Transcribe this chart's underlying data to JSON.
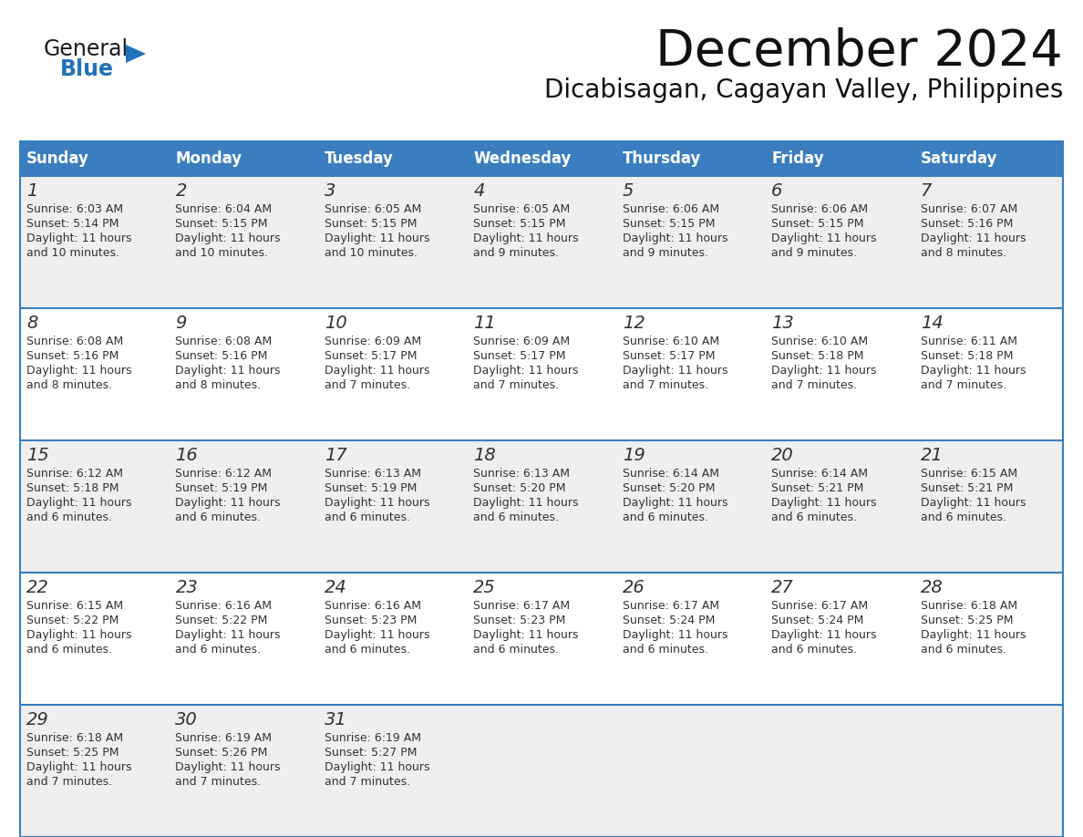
{
  "title": "December 2024",
  "subtitle": "Dicabisagan, Cagayan Valley, Philippines",
  "header_color": "#3a7ebf",
  "header_text_color": "#ffffff",
  "row_odd_bg": "#efefef",
  "row_even_bg": "#ffffff",
  "border_color": "#3a7ebf",
  "text_color": "#333333",
  "days_of_week": [
    "Sunday",
    "Monday",
    "Tuesday",
    "Wednesday",
    "Thursday",
    "Friday",
    "Saturday"
  ],
  "weeks": [
    [
      {
        "day": 1,
        "sunrise": "6:03 AM",
        "sunset": "5:14 PM",
        "daylight_l1": "Daylight: 11 hours",
        "daylight_l2": "and 10 minutes."
      },
      {
        "day": 2,
        "sunrise": "6:04 AM",
        "sunset": "5:15 PM",
        "daylight_l1": "Daylight: 11 hours",
        "daylight_l2": "and 10 minutes."
      },
      {
        "day": 3,
        "sunrise": "6:05 AM",
        "sunset": "5:15 PM",
        "daylight_l1": "Daylight: 11 hours",
        "daylight_l2": "and 10 minutes."
      },
      {
        "day": 4,
        "sunrise": "6:05 AM",
        "sunset": "5:15 PM",
        "daylight_l1": "Daylight: 11 hours",
        "daylight_l2": "and 9 minutes."
      },
      {
        "day": 5,
        "sunrise": "6:06 AM",
        "sunset": "5:15 PM",
        "daylight_l1": "Daylight: 11 hours",
        "daylight_l2": "and 9 minutes."
      },
      {
        "day": 6,
        "sunrise": "6:06 AM",
        "sunset": "5:15 PM",
        "daylight_l1": "Daylight: 11 hours",
        "daylight_l2": "and 9 minutes."
      },
      {
        "day": 7,
        "sunrise": "6:07 AM",
        "sunset": "5:16 PM",
        "daylight_l1": "Daylight: 11 hours",
        "daylight_l2": "and 8 minutes."
      }
    ],
    [
      {
        "day": 8,
        "sunrise": "6:08 AM",
        "sunset": "5:16 PM",
        "daylight_l1": "Daylight: 11 hours",
        "daylight_l2": "and 8 minutes."
      },
      {
        "day": 9,
        "sunrise": "6:08 AM",
        "sunset": "5:16 PM",
        "daylight_l1": "Daylight: 11 hours",
        "daylight_l2": "and 8 minutes."
      },
      {
        "day": 10,
        "sunrise": "6:09 AM",
        "sunset": "5:17 PM",
        "daylight_l1": "Daylight: 11 hours",
        "daylight_l2": "and 7 minutes."
      },
      {
        "day": 11,
        "sunrise": "6:09 AM",
        "sunset": "5:17 PM",
        "daylight_l1": "Daylight: 11 hours",
        "daylight_l2": "and 7 minutes."
      },
      {
        "day": 12,
        "sunrise": "6:10 AM",
        "sunset": "5:17 PM",
        "daylight_l1": "Daylight: 11 hours",
        "daylight_l2": "and 7 minutes."
      },
      {
        "day": 13,
        "sunrise": "6:10 AM",
        "sunset": "5:18 PM",
        "daylight_l1": "Daylight: 11 hours",
        "daylight_l2": "and 7 minutes."
      },
      {
        "day": 14,
        "sunrise": "6:11 AM",
        "sunset": "5:18 PM",
        "daylight_l1": "Daylight: 11 hours",
        "daylight_l2": "and 7 minutes."
      }
    ],
    [
      {
        "day": 15,
        "sunrise": "6:12 AM",
        "sunset": "5:18 PM",
        "daylight_l1": "Daylight: 11 hours",
        "daylight_l2": "and 6 minutes."
      },
      {
        "day": 16,
        "sunrise": "6:12 AM",
        "sunset": "5:19 PM",
        "daylight_l1": "Daylight: 11 hours",
        "daylight_l2": "and 6 minutes."
      },
      {
        "day": 17,
        "sunrise": "6:13 AM",
        "sunset": "5:19 PM",
        "daylight_l1": "Daylight: 11 hours",
        "daylight_l2": "and 6 minutes."
      },
      {
        "day": 18,
        "sunrise": "6:13 AM",
        "sunset": "5:20 PM",
        "daylight_l1": "Daylight: 11 hours",
        "daylight_l2": "and 6 minutes."
      },
      {
        "day": 19,
        "sunrise": "6:14 AM",
        "sunset": "5:20 PM",
        "daylight_l1": "Daylight: 11 hours",
        "daylight_l2": "and 6 minutes."
      },
      {
        "day": 20,
        "sunrise": "6:14 AM",
        "sunset": "5:21 PM",
        "daylight_l1": "Daylight: 11 hours",
        "daylight_l2": "and 6 minutes."
      },
      {
        "day": 21,
        "sunrise": "6:15 AM",
        "sunset": "5:21 PM",
        "daylight_l1": "Daylight: 11 hours",
        "daylight_l2": "and 6 minutes."
      }
    ],
    [
      {
        "day": 22,
        "sunrise": "6:15 AM",
        "sunset": "5:22 PM",
        "daylight_l1": "Daylight: 11 hours",
        "daylight_l2": "and 6 minutes."
      },
      {
        "day": 23,
        "sunrise": "6:16 AM",
        "sunset": "5:22 PM",
        "daylight_l1": "Daylight: 11 hours",
        "daylight_l2": "and 6 minutes."
      },
      {
        "day": 24,
        "sunrise": "6:16 AM",
        "sunset": "5:23 PM",
        "daylight_l1": "Daylight: 11 hours",
        "daylight_l2": "and 6 minutes."
      },
      {
        "day": 25,
        "sunrise": "6:17 AM",
        "sunset": "5:23 PM",
        "daylight_l1": "Daylight: 11 hours",
        "daylight_l2": "and 6 minutes."
      },
      {
        "day": 26,
        "sunrise": "6:17 AM",
        "sunset": "5:24 PM",
        "daylight_l1": "Daylight: 11 hours",
        "daylight_l2": "and 6 minutes."
      },
      {
        "day": 27,
        "sunrise": "6:17 AM",
        "sunset": "5:24 PM",
        "daylight_l1": "Daylight: 11 hours",
        "daylight_l2": "and 6 minutes."
      },
      {
        "day": 28,
        "sunrise": "6:18 AM",
        "sunset": "5:25 PM",
        "daylight_l1": "Daylight: 11 hours",
        "daylight_l2": "and 6 minutes."
      }
    ],
    [
      {
        "day": 29,
        "sunrise": "6:18 AM",
        "sunset": "5:25 PM",
        "daylight_l1": "Daylight: 11 hours",
        "daylight_l2": "and 7 minutes."
      },
      {
        "day": 30,
        "sunrise": "6:19 AM",
        "sunset": "5:26 PM",
        "daylight_l1": "Daylight: 11 hours",
        "daylight_l2": "and 7 minutes."
      },
      {
        "day": 31,
        "sunrise": "6:19 AM",
        "sunset": "5:27 PM",
        "daylight_l1": "Daylight: 11 hours",
        "daylight_l2": "and 7 minutes."
      },
      null,
      null,
      null,
      null
    ]
  ],
  "logo_color_general": "#1a1a1a",
  "logo_color_blue": "#2272b9",
  "title_fontsize": 40,
  "subtitle_fontsize": 20,
  "header_fontsize": 12,
  "day_num_fontsize": 14,
  "cell_text_fontsize": 9
}
